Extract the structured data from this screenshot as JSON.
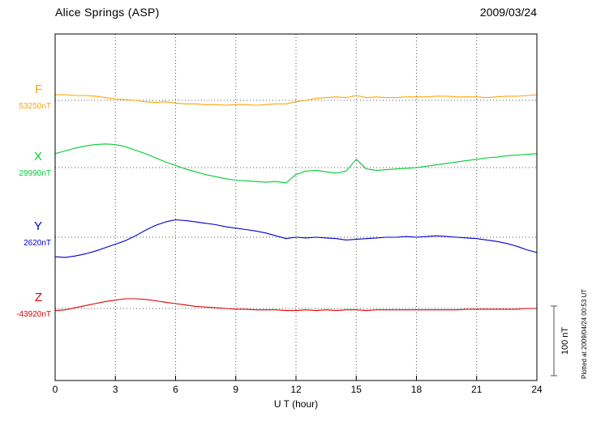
{
  "header": {
    "title": "Alice Springs (ASP)",
    "date": "2009/03/24"
  },
  "axis": {
    "xlabel": "U T (hour)",
    "tick_hours": [
      0,
      3,
      6,
      9,
      12,
      15,
      18,
      21,
      24
    ],
    "xmin": 0,
    "xmax": 24
  },
  "scalebar": {
    "label": "100 nT",
    "span_nT": 100
  },
  "note": "Plotted at 2009/04/24 00:53 UT",
  "chart_data": {
    "type": "line",
    "title": "Alice Springs (ASP) magnetogram 2009/03/24",
    "xlabel": "U T (hour)",
    "x_start": 0,
    "x_step_hours": 0.5,
    "x_end": 24,
    "x_ticks": [
      0,
      3,
      6,
      9,
      12,
      15,
      18,
      21,
      24
    ],
    "grid": "dotted vertical lines every 3 hours; dotted horizontal baseline per channel",
    "scale_bar_nT": 100,
    "series": [
      {
        "name": "F",
        "baseline_label": "53250nT",
        "baseline_nT": 53250,
        "color": "#ffa500",
        "offsets_nT": [
          8,
          8,
          7,
          7,
          6,
          4,
          2,
          1,
          0,
          -2,
          -3,
          -2,
          -4,
          -5,
          -5,
          -6,
          -6,
          -7,
          -6,
          -6,
          -7,
          -6,
          -5,
          -5,
          -2,
          0,
          3,
          4,
          5,
          4,
          7,
          4,
          5,
          4,
          4,
          5,
          5,
          5,
          6,
          6,
          5,
          5,
          5,
          4,
          5,
          6,
          6,
          7,
          8
        ]
      },
      {
        "name": "X",
        "baseline_label": "29990nT",
        "baseline_nT": 29990,
        "color": "#00cc33",
        "offsets_nT": [
          20,
          24,
          28,
          31,
          33,
          34,
          33,
          30,
          25,
          20,
          14,
          8,
          3,
          -2,
          -6,
          -10,
          -13,
          -16,
          -18,
          -19,
          -20,
          -21,
          -20,
          -22,
          -10,
          -5,
          -4,
          -6,
          -8,
          -5,
          12,
          -2,
          -4,
          -3,
          -2,
          -1,
          0,
          2,
          4,
          6,
          8,
          10,
          12,
          14,
          15,
          17,
          18,
          19,
          20
        ]
      },
      {
        "name": "Y",
        "baseline_label": "2620nT",
        "baseline_nT": 2620,
        "color": "#0000cc",
        "offsets_nT": [
          -28,
          -29,
          -27,
          -24,
          -20,
          -15,
          -10,
          -5,
          2,
          10,
          17,
          22,
          25,
          24,
          22,
          20,
          18,
          15,
          13,
          11,
          9,
          6,
          2,
          -2,
          0,
          -1,
          0,
          -1,
          -2,
          -4,
          -3,
          -2,
          -1,
          0,
          0,
          1,
          0,
          1,
          2,
          1,
          0,
          -1,
          -2,
          -4,
          -6,
          -9,
          -13,
          -18,
          -22
        ]
      },
      {
        "name": "Z",
        "baseline_label": "-43920nT",
        "baseline_nT": -43920,
        "color": "#e00000",
        "offsets_nT": [
          -3,
          -2,
          1,
          4,
          7,
          10,
          12,
          14,
          14,
          13,
          11,
          9,
          7,
          5,
          3,
          2,
          1,
          0,
          -1,
          -1,
          -2,
          -2,
          -2,
          -3,
          -3,
          -2,
          -3,
          -2,
          -3,
          -2,
          -2,
          -3,
          -2,
          -2,
          -2,
          -2,
          -2,
          -2,
          -2,
          -2,
          -2,
          -1,
          -1,
          -1,
          -1,
          -1,
          -1,
          0,
          0
        ]
      }
    ]
  }
}
